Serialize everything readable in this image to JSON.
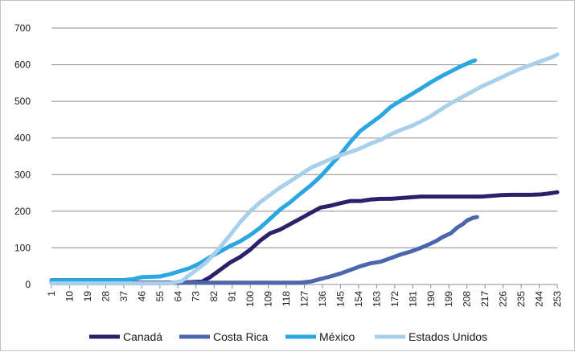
{
  "chart_data": {
    "type": "line",
    "title": "",
    "xlabel": "",
    "ylabel": "",
    "ylim": [
      0,
      700
    ],
    "y_ticks": [
      0,
      100,
      200,
      300,
      400,
      500,
      600,
      700
    ],
    "x_ticks": [
      1,
      10,
      19,
      28,
      37,
      46,
      55,
      64,
      73,
      82,
      91,
      100,
      109,
      118,
      127,
      136,
      145,
      154,
      163,
      172,
      181,
      190,
      199,
      208,
      217,
      226,
      235,
      244,
      253
    ],
    "xlim": [
      1,
      253
    ],
    "grid": "horizontal",
    "legend_position": "bottom",
    "series": [
      {
        "name": "Canadá",
        "color": "#2e1f6b",
        "points": [
          [
            1,
            5
          ],
          [
            64,
            5
          ],
          [
            76,
            8
          ],
          [
            80,
            20
          ],
          [
            85,
            40
          ],
          [
            90,
            60
          ],
          [
            95,
            75
          ],
          [
            100,
            95
          ],
          [
            105,
            120
          ],
          [
            110,
            140
          ],
          [
            115,
            150
          ],
          [
            120,
            165
          ],
          [
            125,
            180
          ],
          [
            130,
            195
          ],
          [
            135,
            210
          ],
          [
            140,
            215
          ],
          [
            145,
            222
          ],
          [
            150,
            228
          ],
          [
            155,
            228
          ],
          [
            160,
            232
          ],
          [
            165,
            234
          ],
          [
            170,
            234
          ],
          [
            175,
            236
          ],
          [
            180,
            238
          ],
          [
            185,
            240
          ],
          [
            190,
            240
          ],
          [
            195,
            240
          ],
          [
            200,
            240
          ],
          [
            205,
            240
          ],
          [
            210,
            240
          ],
          [
            215,
            240
          ],
          [
            220,
            242
          ],
          [
            225,
            244
          ],
          [
            230,
            245
          ],
          [
            235,
            245
          ],
          [
            240,
            245
          ],
          [
            245,
            246
          ],
          [
            248,
            248
          ],
          [
            253,
            252
          ]
        ]
      },
      {
        "name": "Costa Rica",
        "color": "#4a66ac",
        "points": [
          [
            1,
            5
          ],
          [
            100,
            5
          ],
          [
            110,
            5
          ],
          [
            125,
            5
          ],
          [
            130,
            8
          ],
          [
            135,
            15
          ],
          [
            140,
            22
          ],
          [
            145,
            30
          ],
          [
            150,
            40
          ],
          [
            155,
            50
          ],
          [
            160,
            58
          ],
          [
            165,
            62
          ],
          [
            170,
            72
          ],
          [
            175,
            82
          ],
          [
            180,
            90
          ],
          [
            185,
            100
          ],
          [
            190,
            112
          ],
          [
            193,
            120
          ],
          [
            196,
            130
          ],
          [
            200,
            140
          ],
          [
            203,
            155
          ],
          [
            206,
            165
          ],
          [
            208,
            175
          ],
          [
            211,
            182
          ],
          [
            213,
            184
          ]
        ]
      },
      {
        "name": "México",
        "color": "#2aa6e0",
        "points": [
          [
            1,
            12
          ],
          [
            37,
            12
          ],
          [
            42,
            15
          ],
          [
            46,
            20
          ],
          [
            55,
            22
          ],
          [
            60,
            28
          ],
          [
            64,
            35
          ],
          [
            70,
            45
          ],
          [
            75,
            58
          ],
          [
            80,
            75
          ],
          [
            85,
            90
          ],
          [
            90,
            105
          ],
          [
            95,
            118
          ],
          [
            100,
            135
          ],
          [
            105,
            155
          ],
          [
            110,
            180
          ],
          [
            115,
            205
          ],
          [
            120,
            225
          ],
          [
            125,
            248
          ],
          [
            130,
            270
          ],
          [
            135,
            295
          ],
          [
            140,
            325
          ],
          [
            145,
            355
          ],
          [
            150,
            390
          ],
          [
            155,
            420
          ],
          [
            160,
            440
          ],
          [
            165,
            460
          ],
          [
            170,
            485
          ],
          [
            175,
            502
          ],
          [
            180,
            518
          ],
          [
            185,
            535
          ],
          [
            190,
            552
          ],
          [
            195,
            568
          ],
          [
            200,
            582
          ],
          [
            205,
            596
          ],
          [
            210,
            608
          ],
          [
            212,
            612
          ]
        ]
      },
      {
        "name": "Estados Unidos",
        "color": "#a9d0ea",
        "points": [
          [
            1,
            3
          ],
          [
            60,
            3
          ],
          [
            66,
            10
          ],
          [
            72,
            35
          ],
          [
            78,
            60
          ],
          [
            84,
            95
          ],
          [
            90,
            135
          ],
          [
            95,
            170
          ],
          [
            100,
            200
          ],
          [
            105,
            225
          ],
          [
            110,
            245
          ],
          [
            115,
            265
          ],
          [
            120,
            282
          ],
          [
            125,
            300
          ],
          [
            130,
            318
          ],
          [
            135,
            330
          ],
          [
            140,
            342
          ],
          [
            145,
            353
          ],
          [
            150,
            362
          ],
          [
            155,
            372
          ],
          [
            160,
            385
          ],
          [
            165,
            395
          ],
          [
            170,
            410
          ],
          [
            175,
            422
          ],
          [
            180,
            432
          ],
          [
            185,
            445
          ],
          [
            190,
            460
          ],
          [
            195,
            478
          ],
          [
            200,
            495
          ],
          [
            205,
            510
          ],
          [
            210,
            525
          ],
          [
            215,
            540
          ],
          [
            220,
            552
          ],
          [
            225,
            565
          ],
          [
            230,
            578
          ],
          [
            235,
            590
          ],
          [
            240,
            600
          ],
          [
            245,
            610
          ],
          [
            250,
            620
          ],
          [
            253,
            628
          ]
        ]
      }
    ]
  }
}
